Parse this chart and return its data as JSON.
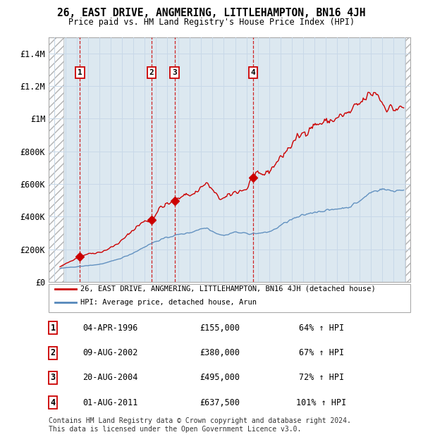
{
  "title": "26, EAST DRIVE, ANGMERING, LITTLEHAMPTON, BN16 4JH",
  "subtitle": "Price paid vs. HM Land Registry's House Price Index (HPI)",
  "legend_label_red": "26, EAST DRIVE, ANGMERING, LITTLEHAMPTON, BN16 4JH (detached house)",
  "legend_label_blue": "HPI: Average price, detached house, Arun",
  "footer": "Contains HM Land Registry data © Crown copyright and database right 2024.\nThis data is licensed under the Open Government Licence v3.0.",
  "sales": [
    {
      "num": 1,
      "date": "04-APR-1996",
      "price": 155000,
      "pct": "64% ↑ HPI",
      "year": 1996.27
    },
    {
      "num": 2,
      "date": "09-AUG-2002",
      "price": 380000,
      "pct": "67% ↑ HPI",
      "year": 2002.61
    },
    {
      "num": 3,
      "date": "20-AUG-2004",
      "price": 495000,
      "pct": "72% ↑ HPI",
      "year": 2004.64
    },
    {
      "num": 4,
      "date": "01-AUG-2011",
      "price": 637500,
      "pct": "101% ↑ HPI",
      "year": 2011.58
    }
  ],
  "ylim": [
    0,
    1500000
  ],
  "xlim": [
    1993.5,
    2025.5
  ],
  "yticks": [
    0,
    200000,
    400000,
    600000,
    800000,
    1000000,
    1200000,
    1400000
  ],
  "ytick_labels": [
    "£0",
    "£200K",
    "£400K",
    "£600K",
    "£800K",
    "£1M",
    "£1.2M",
    "£1.4M"
  ],
  "hatch_end": 1994.83,
  "red_color": "#cc0000",
  "blue_color": "#5588bb",
  "grid_color": "#c8d8e8",
  "chart_bg": "#dce8f0",
  "hatch_bg": "#e8e8e8"
}
